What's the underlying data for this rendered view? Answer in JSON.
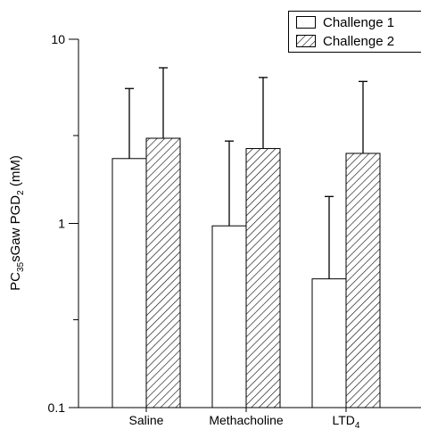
{
  "chart_data": {
    "type": "bar",
    "y_scale": "log",
    "ylim": [
      0.1,
      10
    ],
    "yticks": [
      {
        "value": 10,
        "label": "10"
      },
      {
        "value": 1,
        "label": "1"
      },
      {
        "value": 0.1,
        "label": "0.1"
      }
    ],
    "ylabel": {
      "pre": "PC",
      "sub1": "35",
      "mid": "sGaw PGD",
      "sub2": "2",
      "post": " (mM)"
    },
    "categories": [
      {
        "label": "Saline",
        "sub": ""
      },
      {
        "label": "Methacholine",
        "sub": ""
      },
      {
        "label": "LTD",
        "sub": "4"
      }
    ],
    "series": [
      {
        "name": "Challenge 1",
        "pattern": "open",
        "values": [
          2.25,
          0.97,
          0.5
        ],
        "error_upper": [
          5.4,
          2.8,
          1.4
        ]
      },
      {
        "name": "Challenge 2",
        "pattern": "hatched",
        "values": [
          2.9,
          2.55,
          2.4
        ],
        "error_upper": [
          7.0,
          6.2,
          5.9
        ]
      }
    ],
    "legend_position": "top-right",
    "grid": false
  }
}
